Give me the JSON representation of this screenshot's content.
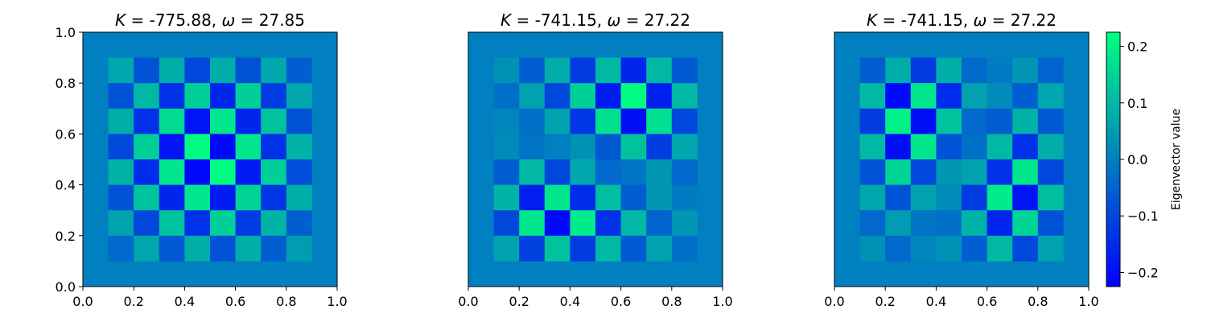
{
  "chart_data": [
    {
      "type": "heatmap",
      "title_prefix": "K",
      "title_mid": " = -775.88, ",
      "title_omega": "ω",
      "title_suffix": " = 27.85",
      "xlim": [
        0.0,
        1.0
      ],
      "ylim": [
        0.0,
        1.0
      ],
      "xticks": [
        "0.0",
        "0.2",
        "0.4",
        "0.6",
        "0.8",
        "1.0"
      ],
      "yticks": [
        "0.0",
        "0.2",
        "0.4",
        "0.6",
        "0.8",
        "1.0"
      ],
      "grid_extent": [
        0.1,
        0.9
      ],
      "background_value": 0.0,
      "z": [
        [
          0.07,
          -0.08,
          0.08,
          -0.1,
          0.08,
          -0.08,
          0.07,
          -0.06
        ],
        [
          -0.08,
          0.1,
          -0.14,
          0.14,
          -0.16,
          0.14,
          -0.12,
          0.07
        ],
        [
          0.08,
          -0.14,
          0.16,
          -0.19,
          0.18,
          -0.16,
          0.12,
          -0.08
        ],
        [
          -0.1,
          0.14,
          -0.19,
          0.22,
          -0.21,
          0.18,
          -0.14,
          0.09
        ],
        [
          0.09,
          -0.15,
          0.18,
          -0.21,
          0.22,
          -0.18,
          0.14,
          -0.09
        ],
        [
          -0.08,
          0.12,
          -0.16,
          0.18,
          -0.18,
          0.15,
          -0.13,
          0.08
        ],
        [
          0.06,
          -0.1,
          0.12,
          -0.14,
          0.14,
          -0.12,
          0.09,
          -0.06
        ],
        [
          -0.04,
          0.07,
          -0.07,
          0.08,
          -0.08,
          0.08,
          -0.06,
          0.05
        ]
      ]
    },
    {
      "type": "heatmap",
      "title_prefix": "K",
      "title_mid": " = -741.15, ",
      "title_omega": "ω",
      "title_suffix": " = 27.22",
      "xlim": [
        0.0,
        1.0
      ],
      "ylim": [
        0.0,
        1.0
      ],
      "xticks": [
        "0.0",
        "0.2",
        "0.4",
        "0.6",
        "0.8",
        "1.0"
      ],
      "yticks": [],
      "grid_extent": [
        0.1,
        0.9
      ],
      "background_value": 0.0,
      "z": [
        [
          0.03,
          -0.06,
          0.08,
          -0.12,
          0.1,
          -0.16,
          0.1,
          -0.07
        ],
        [
          -0.03,
          0.06,
          -0.1,
          0.14,
          -0.18,
          0.22,
          -0.17,
          0.1
        ],
        [
          0.01,
          -0.03,
          0.06,
          -0.13,
          0.17,
          -0.2,
          0.17,
          -0.1
        ],
        [
          0.02,
          -0.02,
          0.0,
          0.03,
          -0.07,
          0.12,
          -0.12,
          0.07
        ],
        [
          -0.06,
          0.1,
          -0.1,
          0.07,
          -0.04,
          -0.02,
          0.04,
          -0.04
        ],
        [
          0.09,
          -0.17,
          0.18,
          -0.15,
          0.11,
          -0.06,
          0.04,
          -0.01
        ],
        [
          -0.1,
          0.18,
          -0.21,
          0.19,
          -0.14,
          0.1,
          -0.05,
          0.04
        ],
        [
          0.06,
          -0.11,
          0.12,
          -0.12,
          0.1,
          -0.07,
          0.06,
          -0.03
        ]
      ]
    },
    {
      "type": "heatmap",
      "title_prefix": "K",
      "title_mid": " = -741.15, ",
      "title_omega": "ω",
      "title_suffix": " = 27.22",
      "xlim": [
        0.0,
        1.0
      ],
      "ylim": [
        0.0,
        1.0
      ],
      "xticks": [
        "0.0",
        "0.2",
        "0.4",
        "0.6",
        "0.8",
        "1.0"
      ],
      "yticks": [],
      "grid_extent": [
        0.1,
        0.9
      ],
      "background_value": 0.0,
      "z": [
        [
          -0.06,
          0.08,
          -0.12,
          0.08,
          -0.04,
          -0.01,
          0.04,
          -0.05
        ],
        [
          0.1,
          -0.21,
          0.18,
          -0.15,
          0.06,
          0.02,
          -0.06,
          0.07
        ],
        [
          -0.12,
          0.2,
          -0.2,
          0.12,
          -0.04,
          -0.06,
          0.09,
          -0.07
        ],
        [
          0.1,
          -0.2,
          0.18,
          -0.08,
          -0.03,
          0.1,
          -0.14,
          0.08
        ],
        [
          -0.08,
          0.15,
          -0.1,
          0.04,
          0.06,
          -0.14,
          0.18,
          -0.1
        ],
        [
          0.07,
          -0.08,
          0.06,
          0.02,
          -0.12,
          0.19,
          -0.19,
          0.11
        ],
        [
          -0.04,
          0.05,
          -0.02,
          -0.03,
          0.09,
          -0.16,
          0.15,
          -0.08
        ],
        [
          0.03,
          -0.04,
          0.01,
          0.03,
          -0.06,
          0.1,
          -0.1,
          0.06
        ]
      ]
    }
  ],
  "colorbar": {
    "colormap": "winter",
    "vmin": -0.225,
    "vmax": 0.225,
    "ticks": [
      {
        "value": -0.2,
        "label": "−0.2"
      },
      {
        "value": -0.1,
        "label": "−0.1"
      },
      {
        "value": 0.0,
        "label": "0.0"
      },
      {
        "value": 0.1,
        "label": "0.1"
      },
      {
        "value": 0.2,
        "label": "0.2"
      }
    ],
    "label": "Eigenvector value"
  },
  "colors": {
    "cmap_low": "#0000ff",
    "cmap_high": "#00ff80"
  }
}
